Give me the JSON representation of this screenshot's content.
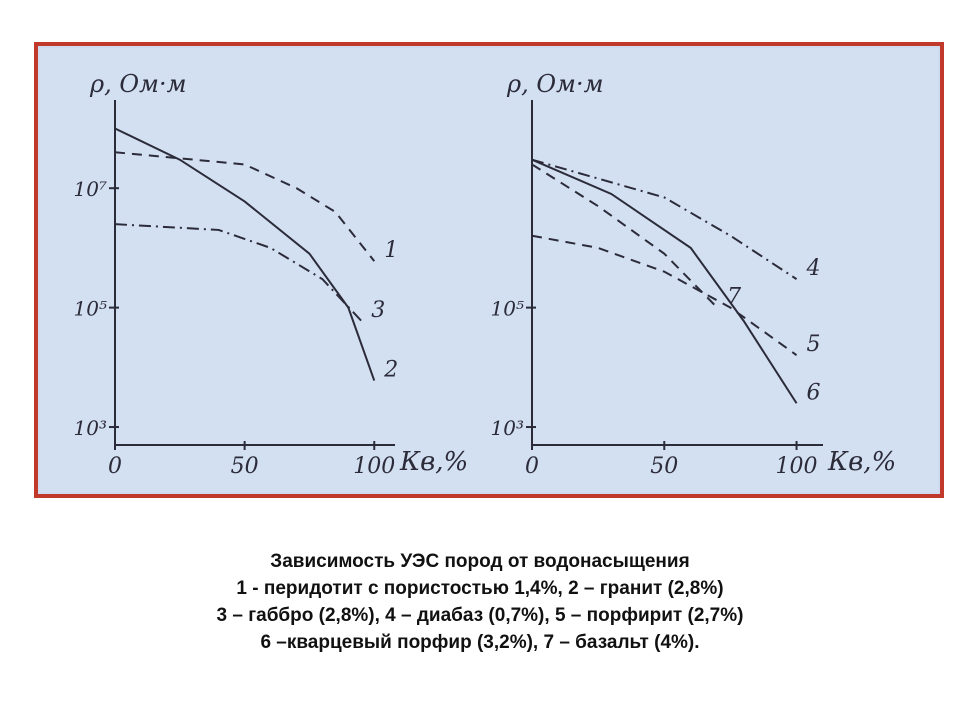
{
  "chart_data": [
    {
      "type": "line",
      "ylabel": "ρ, Ом·м",
      "xlabel": "Кв,%",
      "yscale": "log",
      "grid": false,
      "xlim": [
        0,
        108
      ],
      "ylim": [
        500,
        300000000
      ],
      "xticks": [
        0,
        50,
        100
      ],
      "yticks": [
        {
          "value": 1000,
          "label": "10³"
        },
        {
          "value": 100000,
          "label": "10⁵"
        },
        {
          "value": 10000000,
          "label": "10⁷"
        }
      ],
      "series": [
        {
          "name": "1",
          "color": "#2b2b3a",
          "dash": "dashed",
          "x": [
            0,
            50,
            70,
            85,
            100
          ],
          "values": [
            40000000,
            25000000,
            10000000,
            4000000,
            600000
          ]
        },
        {
          "name": "2",
          "color": "#2b2b3a",
          "dash": "solid",
          "x": [
            0,
            25,
            50,
            75,
            90,
            100
          ],
          "values": [
            100000000,
            30000000,
            6000000,
            800000,
            100000,
            6000
          ]
        },
        {
          "name": "3",
          "color": "#2b2b3a",
          "dash": "dashdot",
          "x": [
            0,
            40,
            60,
            80,
            95
          ],
          "values": [
            2500000,
            2000000,
            1000000,
            300000,
            60000
          ]
        }
      ]
    },
    {
      "type": "line",
      "ylabel": "ρ, Ом·м",
      "xlabel": "Кв,%",
      "yscale": "log",
      "grid": false,
      "xlim": [
        0,
        110
      ],
      "ylim": [
        500,
        300000000
      ],
      "xticks": [
        0,
        50,
        100
      ],
      "yticks": [
        {
          "value": 1000,
          "label": "10³"
        },
        {
          "value": 100000,
          "label": "10⁵"
        }
      ],
      "series": [
        {
          "name": "4",
          "color": "#2b2b3a",
          "dash": "dashdot",
          "x": [
            0,
            50,
            75,
            100
          ],
          "values": [
            30000000,
            7000000,
            1600000,
            300000
          ]
        },
        {
          "name": "5",
          "color": "#2b2b3a",
          "dash": "dashed",
          "x": [
            0,
            25,
            50,
            75,
            100
          ],
          "values": [
            1600000,
            1000000,
            400000,
            100000,
            16000
          ]
        },
        {
          "name": "6",
          "color": "#2b2b3a",
          "dash": "solid",
          "x": [
            0,
            30,
            60,
            80,
            100
          ],
          "values": [
            30000000,
            8000000,
            1000000,
            60000,
            2500
          ]
        },
        {
          "name": "7",
          "color": "#2b2b3a",
          "dash": "dashed",
          "x": [
            0,
            25,
            50,
            70
          ],
          "values": [
            25000000,
            5000000,
            800000,
            100000
          ]
        }
      ]
    }
  ],
  "caption": [
    "Зависимость УЭС пород от водонасыщения",
    "1 - перидотит с пористостью 1,4%, 2 – гранит (2,8%)",
    "3 – габбро (2,8%), 4 – диабаз (0,7%), 5 – порфирит (2,7%)",
    "6 –кварцевый порфир (3,2%), 7 – базальт (4%)."
  ]
}
